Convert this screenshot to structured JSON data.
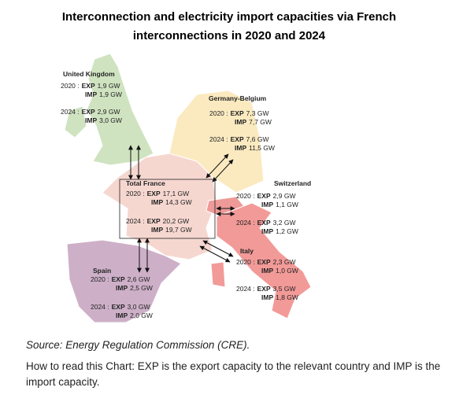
{
  "title": [
    "Interconnection and electricity import capacities via French",
    "interconnections in 2020 and 2024"
  ],
  "regions": [
    {
      "name": "United Kingdom",
      "rows": [
        {
          "year": "2020 :",
          "exp_label": "EXP",
          "exp": "1,9 GW",
          "imp_label": "IMP",
          "imp": "1,9 GW"
        },
        {
          "year": "2024 :",
          "exp_label": "EXP",
          "exp": "2,9 GW",
          "imp_label": "IMP",
          "imp": "3,0 GW"
        }
      ]
    },
    {
      "name": "Germany-Belgium",
      "rows": [
        {
          "year": "2020 :",
          "exp_label": "EXP",
          "exp": "7,3 GW",
          "imp_label": "IMP",
          "imp": "7,7 GW"
        },
        {
          "year": "2024 :",
          "exp_label": "EXP",
          "exp": "7,6 GW",
          "imp_label": "IMP",
          "imp": "11,5 GW"
        }
      ]
    },
    {
      "name": "Total France",
      "rows": [
        {
          "year": "2020 :",
          "exp_label": "EXP",
          "exp": "17,1 GW",
          "imp_label": "IMP",
          "imp": "14,3 GW"
        },
        {
          "year": "2024 :",
          "exp_label": "EXP",
          "exp": "20,2 GW",
          "imp_label": "IMP",
          "imp": "19,7 GW"
        }
      ]
    },
    {
      "name": "Switzerland",
      "rows": [
        {
          "year": "2020 :",
          "exp_label": "EXP",
          "exp": "2,9 GW",
          "imp_label": "IMP",
          "imp": "1,1 GW"
        },
        {
          "year": "2024 :",
          "exp_label": "EXP",
          "exp": "3,2 GW",
          "imp_label": "IMP",
          "imp": "1,2 GW"
        }
      ]
    },
    {
      "name": "Italy",
      "rows": [
        {
          "year": "2020 :",
          "exp_label": "EXP",
          "exp": "2,3 GW",
          "imp_label": "IMP",
          "imp": "1,0 GW"
        },
        {
          "year": "2024 :",
          "exp_label": "EXP",
          "exp": "3,5 GW",
          "imp_label": "IMP",
          "imp": "1,8 GW"
        }
      ]
    },
    {
      "name": "Spain",
      "rows": [
        {
          "year": "2020 :",
          "exp_label": "EXP",
          "exp": "2,6 GW",
          "imp_label": "IMP",
          "imp": "2,5 GW"
        },
        {
          "year": "2024 :",
          "exp_label": "EXP",
          "exp": "3,0 GW",
          "imp_label": "IMP",
          "imp": "2,0 GW"
        }
      ]
    }
  ],
  "source": "Source: Energy Regulation Commission (CRE).",
  "note": "How to read this Chart: EXP is the export capacity to the relevant country and IMP is the import capacity."
}
